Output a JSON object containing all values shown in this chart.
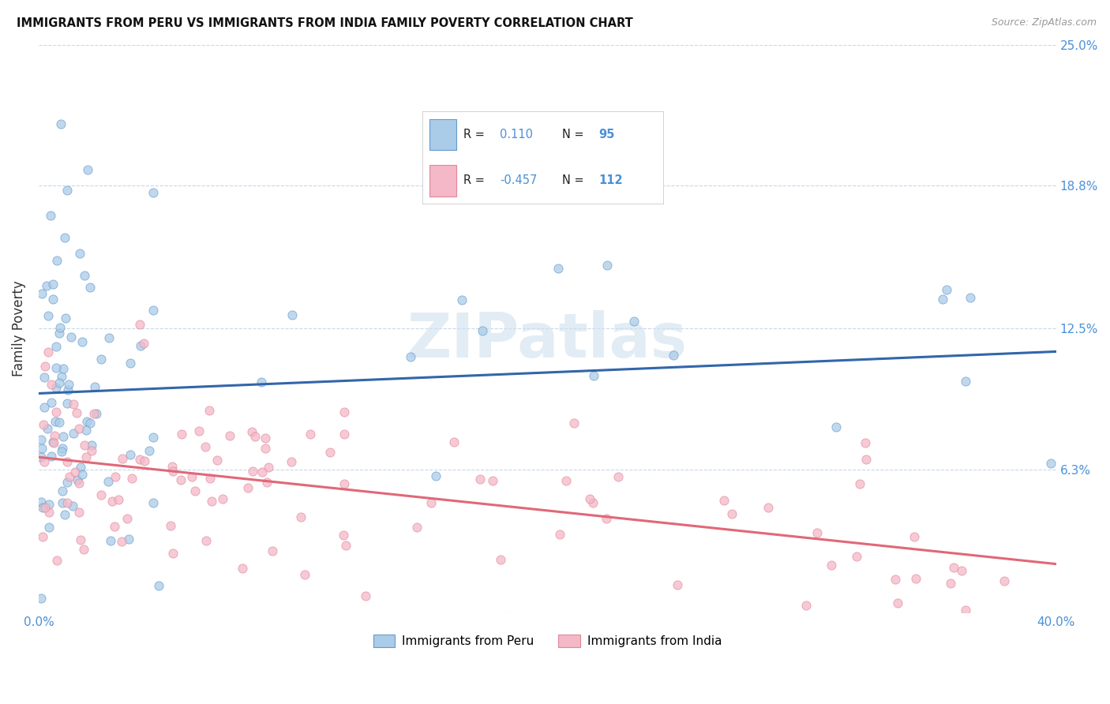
{
  "title": "IMMIGRANTS FROM PERU VS IMMIGRANTS FROM INDIA FAMILY POVERTY CORRELATION CHART",
  "source": "Source: ZipAtlas.com",
  "ylabel": "Family Poverty",
  "xlim": [
    0.0,
    0.4
  ],
  "ylim": [
    0.0,
    0.25
  ],
  "yticks": [
    0.0,
    0.063,
    0.125,
    0.188,
    0.25
  ],
  "ytick_labels": [
    "",
    "6.3%",
    "12.5%",
    "18.8%",
    "25.0%"
  ],
  "xtick_vals": [
    0.0,
    0.1,
    0.2,
    0.3,
    0.4
  ],
  "xtick_labels": [
    "0.0%",
    "",
    "",
    "",
    "40.0%"
  ],
  "peru_R": 0.11,
  "peru_N": 95,
  "india_R": -0.457,
  "india_N": 112,
  "peru_fill_color": "#aacce8",
  "peru_edge_color": "#6699cc",
  "india_fill_color": "#f4b8c8",
  "india_edge_color": "#e08898",
  "peru_line_color": "#3366aa",
  "india_line_color": "#e06878",
  "dash_line_color": "#9ab8d8",
  "background_color": "#ffffff",
  "grid_color": "#c8d8e8",
  "title_color": "#111111",
  "ylabel_color": "#333333",
  "tick_label_color": "#4a90d8",
  "watermark_color": "#d0e0ee",
  "legend_text_color": "#222222",
  "legend_val_color": "#4a90d8",
  "source_color": "#999999"
}
